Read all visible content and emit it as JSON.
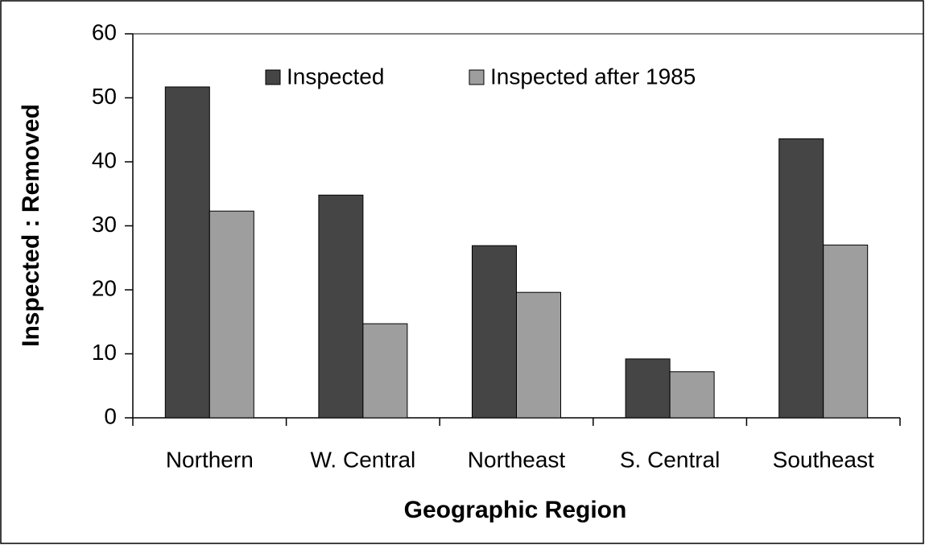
{
  "chart_data": {
    "type": "bar",
    "x_label": "Geographic Region",
    "y_label": "Inspected : Removed",
    "categories": [
      "Northern",
      "W. Central",
      "Northeast",
      "S. Central",
      "Southeast"
    ],
    "series": [
      {
        "name": "Inspected",
        "color": "#454545",
        "values": [
          51.7,
          34.8,
          26.9,
          9.2,
          43.6
        ]
      },
      {
        "name": "Inspected after 1985",
        "color": "#9e9e9e",
        "values": [
          32.3,
          14.7,
          19.6,
          7.2,
          27.0
        ]
      }
    ],
    "ylim": [
      0,
      60
    ],
    "yticks": [
      0,
      10,
      20,
      30,
      40,
      50,
      60
    ],
    "legend": "top"
  }
}
